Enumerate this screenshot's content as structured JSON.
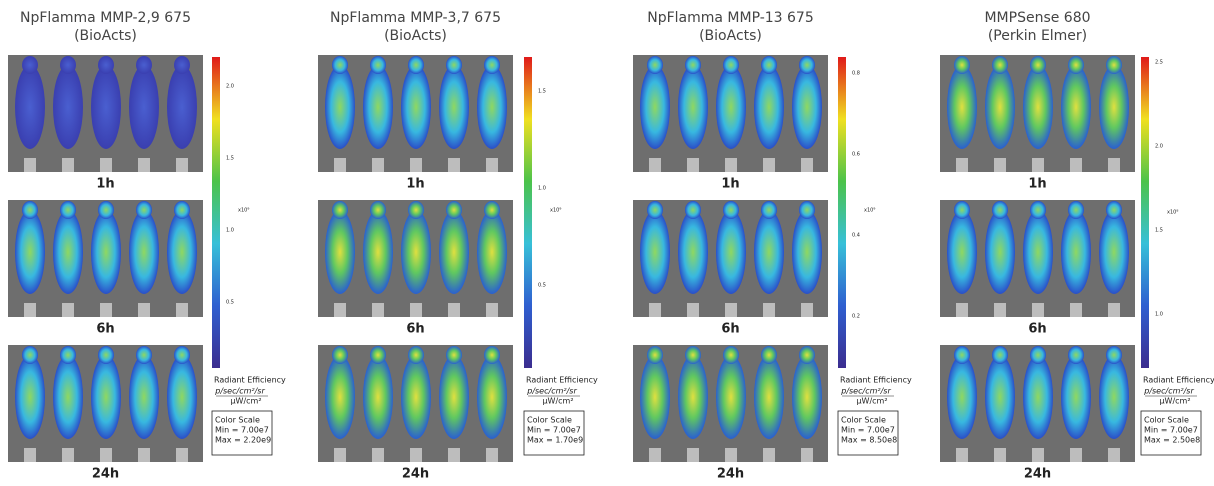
{
  "panels": [
    {
      "title": [
        "NpFlamma MMP-2,9 675",
        "(BioActs)"
      ],
      "times": [
        "1h",
        "6h",
        "24h"
      ],
      "colorbar": {
        "ticks": [
          "2.0",
          "1.5",
          "1.0",
          "0.5"
        ],
        "exponent": "x10⁹"
      },
      "legend": {
        "label": "Radiant Efficiency",
        "unit_num": "p/sec/cm²/sr",
        "unit_den": "µW/cm²"
      },
      "scale": {
        "title": "Color Scale",
        "min": "Min = 7.00e7",
        "max": "Max = 2.20e9"
      }
    },
    {
      "title": [
        "NpFlamma MMP-3,7 675",
        "(BioActs)"
      ],
      "times": [
        "1h",
        "6h",
        "24h"
      ],
      "colorbar": {
        "ticks": [
          "1.5",
          "1.0",
          "0.5"
        ],
        "exponent": "x10⁹"
      },
      "legend": {
        "label": "Radiant Efficiency",
        "unit_num": "p/sec/cm²/sr",
        "unit_den": "µW/cm²"
      },
      "scale": {
        "title": "Color Scale",
        "min": "Min = 7.00e7",
        "max": "Max = 1.70e9"
      }
    },
    {
      "title": [
        "NpFlamma MMP-13 675",
        "(BioActs)"
      ],
      "times": [
        "1h",
        "6h",
        "24h"
      ],
      "colorbar": {
        "ticks": [
          "0.8",
          "0.6",
          "0.4",
          "0.2"
        ],
        "exponent": "x10⁹"
      },
      "legend": {
        "label": "Radiant Efficiency",
        "unit_num": "p/sec/cm²/sr",
        "unit_den": "µW/cm²"
      },
      "scale": {
        "title": "Color Scale",
        "min": "Min = 7.00e7",
        "max": "Max = 8.50e8"
      }
    },
    {
      "title": [
        "MMPSense 680",
        "(Perkin Elmer)"
      ],
      "times": [
        "1h",
        "6h",
        "24h"
      ],
      "colorbar": {
        "ticks": [
          "2.5",
          "2.0",
          "1.5",
          "1.0"
        ],
        "exponent": "x10⁸"
      },
      "legend": {
        "label": "Radiant Efficiency",
        "unit_num": "p/sec/cm²/sr",
        "unit_den": "µW/cm²"
      },
      "scale": {
        "title": "Color Scale",
        "min": "Min = 7.00e7",
        "max": "Max = 2.50e8"
      }
    }
  ]
}
